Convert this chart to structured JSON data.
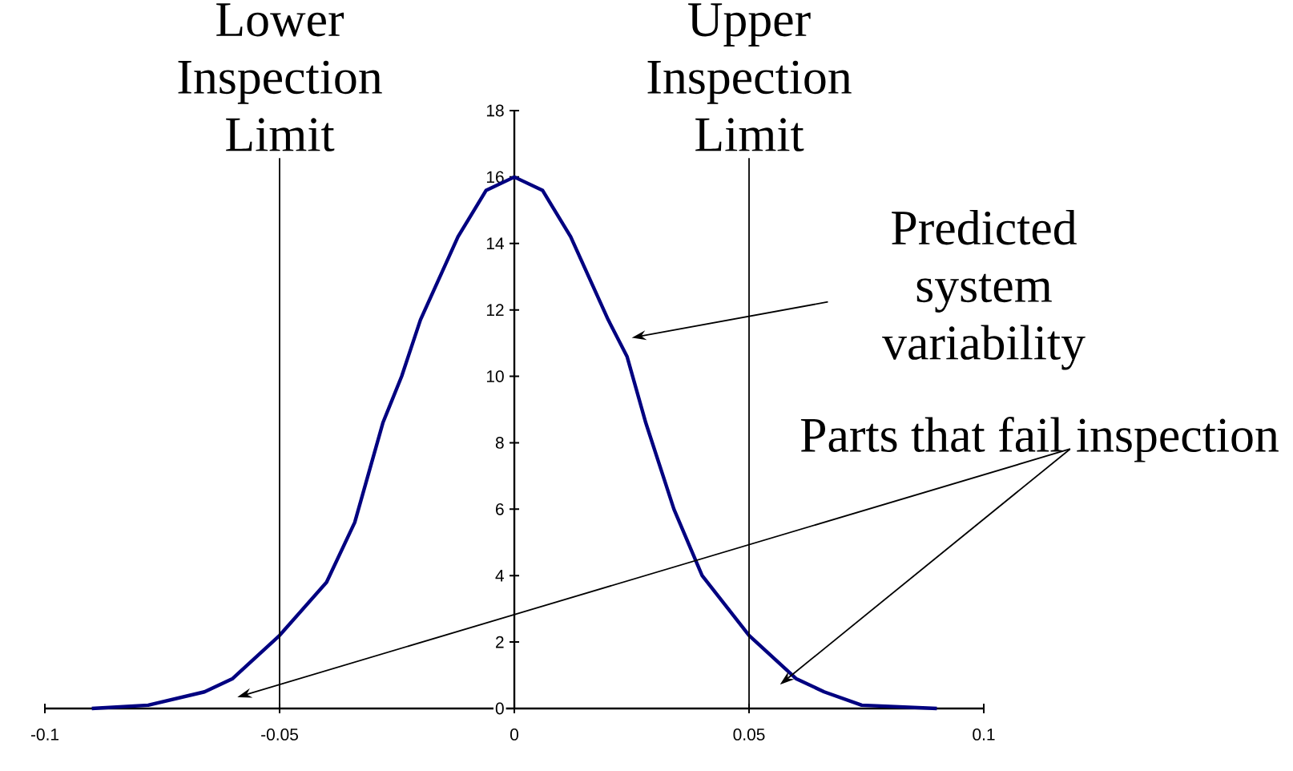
{
  "chart_data": {
    "type": "line",
    "xlim": [
      -0.1,
      0.1
    ],
    "xticks": [
      -0.1,
      -0.05,
      0,
      0.05,
      0.1
    ],
    "ylim": [
      0,
      18
    ],
    "yticks": [
      0,
      2,
      4,
      6,
      8,
      10,
      12,
      14,
      16,
      18
    ],
    "grid": false,
    "marker": "none",
    "line_style": "solid",
    "series": [
      {
        "color": "#000080",
        "x": [
          -0.09,
          -0.078,
          -0.066,
          -0.06,
          -0.05,
          -0.04,
          -0.034,
          -0.028,
          -0.024,
          -0.02,
          -0.012,
          -0.006,
          0,
          0.006,
          0.012,
          0.02,
          0.024,
          0.028,
          0.034,
          0.04,
          0.05,
          0.06,
          0.066,
          0.074,
          0.09
        ],
        "values": [
          0.0,
          0.1,
          0.5,
          0.9,
          2.2,
          3.8,
          5.6,
          8.6,
          10.0,
          11.7,
          14.2,
          15.6,
          16.0,
          15.6,
          14.2,
          11.7,
          10.6,
          8.6,
          6.0,
          4.0,
          2.2,
          0.9,
          0.5,
          0.1,
          0.0
        ]
      }
    ],
    "ref_lines": [
      {
        "axis": "x",
        "value": -0.05,
        "label": "Lower Inspection Limit"
      },
      {
        "axis": "x",
        "value": 0.05,
        "label": "Upper Inspection Limit"
      }
    ],
    "annotations": [
      "Predicted system variability",
      "Parts that fail inspection"
    ]
  }
}
